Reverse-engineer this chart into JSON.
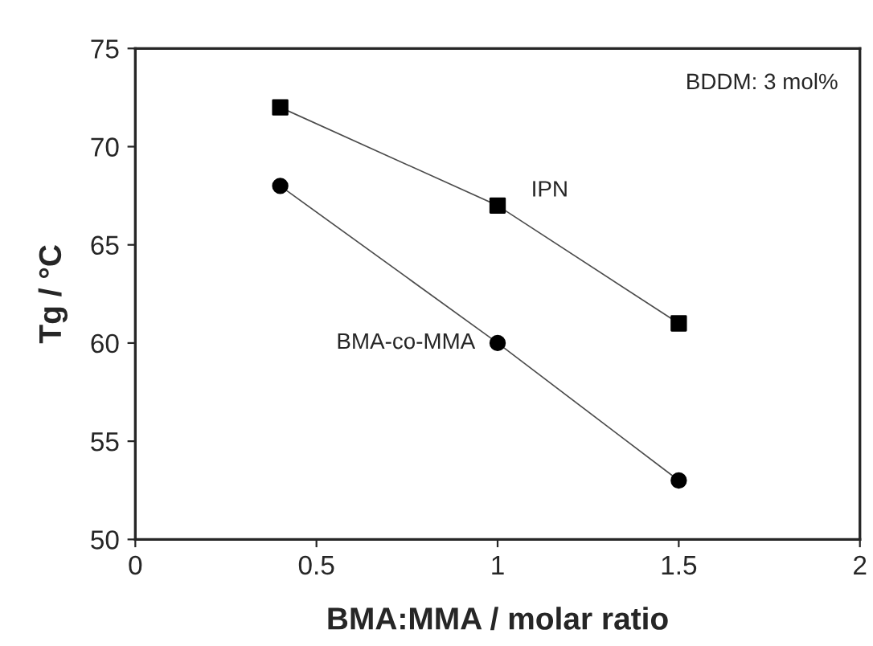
{
  "chart_data": {
    "type": "line",
    "xlabel": "BMA:MMA / molar ratio",
    "ylabel": "Tg / °C",
    "annotations": [
      "BDDM: 3 mol%"
    ],
    "series": [
      {
        "name": "IPN",
        "color": "#000000",
        "marker": "square",
        "x": [
          0.4,
          1,
          1.5
        ],
        "values": [
          72,
          67,
          61
        ]
      },
      {
        "name": "BMA-co-MMA",
        "color": "#000000",
        "marker": "circle",
        "x": [
          0.4,
          1,
          1.5
        ],
        "values": [
          68,
          60,
          53
        ]
      }
    ],
    "xlim": [
      0,
      2
    ],
    "xticks": [
      0,
      0.5,
      1,
      1.5,
      2
    ],
    "ylim": [
      50,
      75
    ],
    "yticks": [
      50,
      55,
      60,
      65,
      70,
      75
    ],
    "grid": false,
    "line_style": "solid"
  }
}
